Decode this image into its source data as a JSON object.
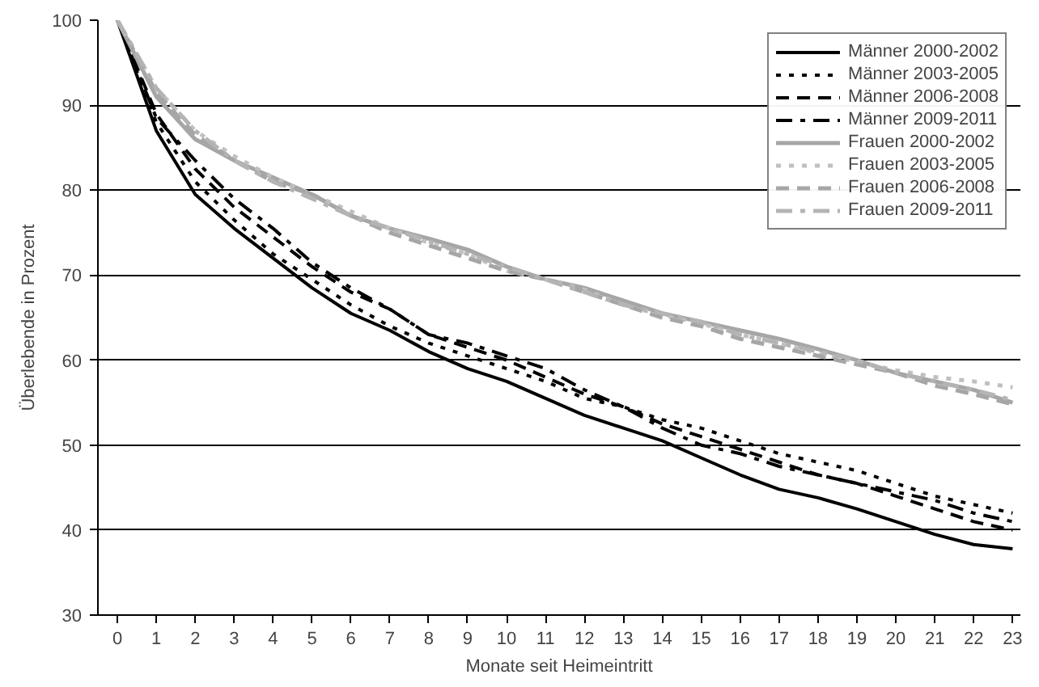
{
  "chart_data": {
    "type": "line",
    "xlabel": "Monate seit Heimeintritt",
    "ylabel": "Überlebende in Prozent",
    "x": [
      0,
      1,
      2,
      3,
      4,
      5,
      6,
      7,
      8,
      9,
      10,
      11,
      12,
      13,
      14,
      15,
      16,
      17,
      18,
      19,
      20,
      21,
      22,
      23
    ],
    "xlim": [
      -0.5,
      23.2
    ],
    "xticks": [
      0,
      1,
      2,
      3,
      4,
      5,
      6,
      7,
      8,
      9,
      10,
      11,
      12,
      13,
      14,
      15,
      16,
      17,
      18,
      19,
      20,
      21,
      22,
      23
    ],
    "ylim": [
      30,
      100
    ],
    "yticks": [
      30,
      40,
      50,
      60,
      70,
      80,
      90,
      100
    ],
    "grid": "y",
    "legend": "top right",
    "series": [
      {
        "name": "Männer 2000-2002",
        "color": "#000000",
        "line_style": "solid",
        "values": [
          100,
          87,
          79.5,
          75.5,
          72,
          68.5,
          65.5,
          63.5,
          61,
          59,
          57.5,
          55.5,
          53.5,
          52,
          50.5,
          48.5,
          46.5,
          44.8,
          43.8,
          42.5,
          41,
          39.5,
          38.3,
          37.8
        ]
      },
      {
        "name": "Männer 2003-2005",
        "color": "#000000",
        "line_style": "dotted",
        "values": [
          100,
          88,
          81,
          76.5,
          72.5,
          69.5,
          66.5,
          64,
          62,
          60.5,
          59,
          57.5,
          55.5,
          54.5,
          53,
          52,
          50.5,
          49,
          48,
          47,
          45.5,
          44,
          43,
          42
        ]
      },
      {
        "name": "Männer 2006-2008",
        "color": "#000000",
        "line_style": "dashed",
        "values": [
          100,
          89,
          82.5,
          78,
          74.5,
          71,
          68,
          66,
          63,
          61.5,
          60,
          58,
          56,
          54.5,
          52.5,
          51,
          49.5,
          48,
          46.5,
          45.5,
          44,
          42.5,
          41,
          40
        ]
      },
      {
        "name": "Männer 2009-2011",
        "color": "#000000",
        "line_style": "dashdot",
        "values": [
          100,
          88.5,
          83.5,
          79,
          75.5,
          71.5,
          68.5,
          66,
          63,
          62,
          60.5,
          59,
          56.5,
          54.5,
          52,
          50,
          49,
          47.5,
          46.5,
          45.5,
          44.5,
          43.5,
          42,
          41
        ]
      },
      {
        "name": "Frauen 2000-2002",
        "color": "#a6a6a6",
        "line_style": "solid",
        "values": [
          100,
          91,
          86,
          83.5,
          81.5,
          79.5,
          77,
          75.5,
          74.3,
          73,
          71,
          69.5,
          68.5,
          67,
          65.5,
          64.5,
          63.5,
          62.5,
          61.3,
          60,
          58.5,
          57.5,
          56.5,
          55
        ]
      },
      {
        "name": "Frauen 2003-2005",
        "color": "#c0c0c0",
        "line_style": "dotted",
        "values": [
          100,
          92,
          87,
          84,
          81.5,
          79.5,
          77.5,
          75.5,
          73.8,
          72.5,
          70.5,
          69.5,
          68.3,
          66.5,
          65.3,
          64.3,
          63,
          62,
          60.8,
          59.8,
          58.8,
          58,
          57.5,
          56.8
        ]
      },
      {
        "name": "Frauen 2006-2008",
        "color": "#a6a6a6",
        "line_style": "dashed",
        "values": [
          100,
          91.5,
          86.5,
          83.5,
          81,
          79.5,
          77,
          75,
          73.5,
          72,
          70.5,
          69.5,
          68,
          66.5,
          65,
          64,
          62.5,
          61.5,
          60.5,
          59.5,
          58.5,
          57,
          56,
          54.8
        ]
      },
      {
        "name": "Frauen 2009-2011",
        "color": "#b4b4b4",
        "line_style": "dashdot",
        "values": [
          100,
          92,
          87,
          83.5,
          81,
          79,
          77,
          75.5,
          74,
          72.5,
          71,
          69.5,
          68,
          66.5,
          65.5,
          64.5,
          63,
          62,
          61,
          60,
          58.5,
          57.5,
          56.5,
          55.3
        ]
      }
    ]
  }
}
